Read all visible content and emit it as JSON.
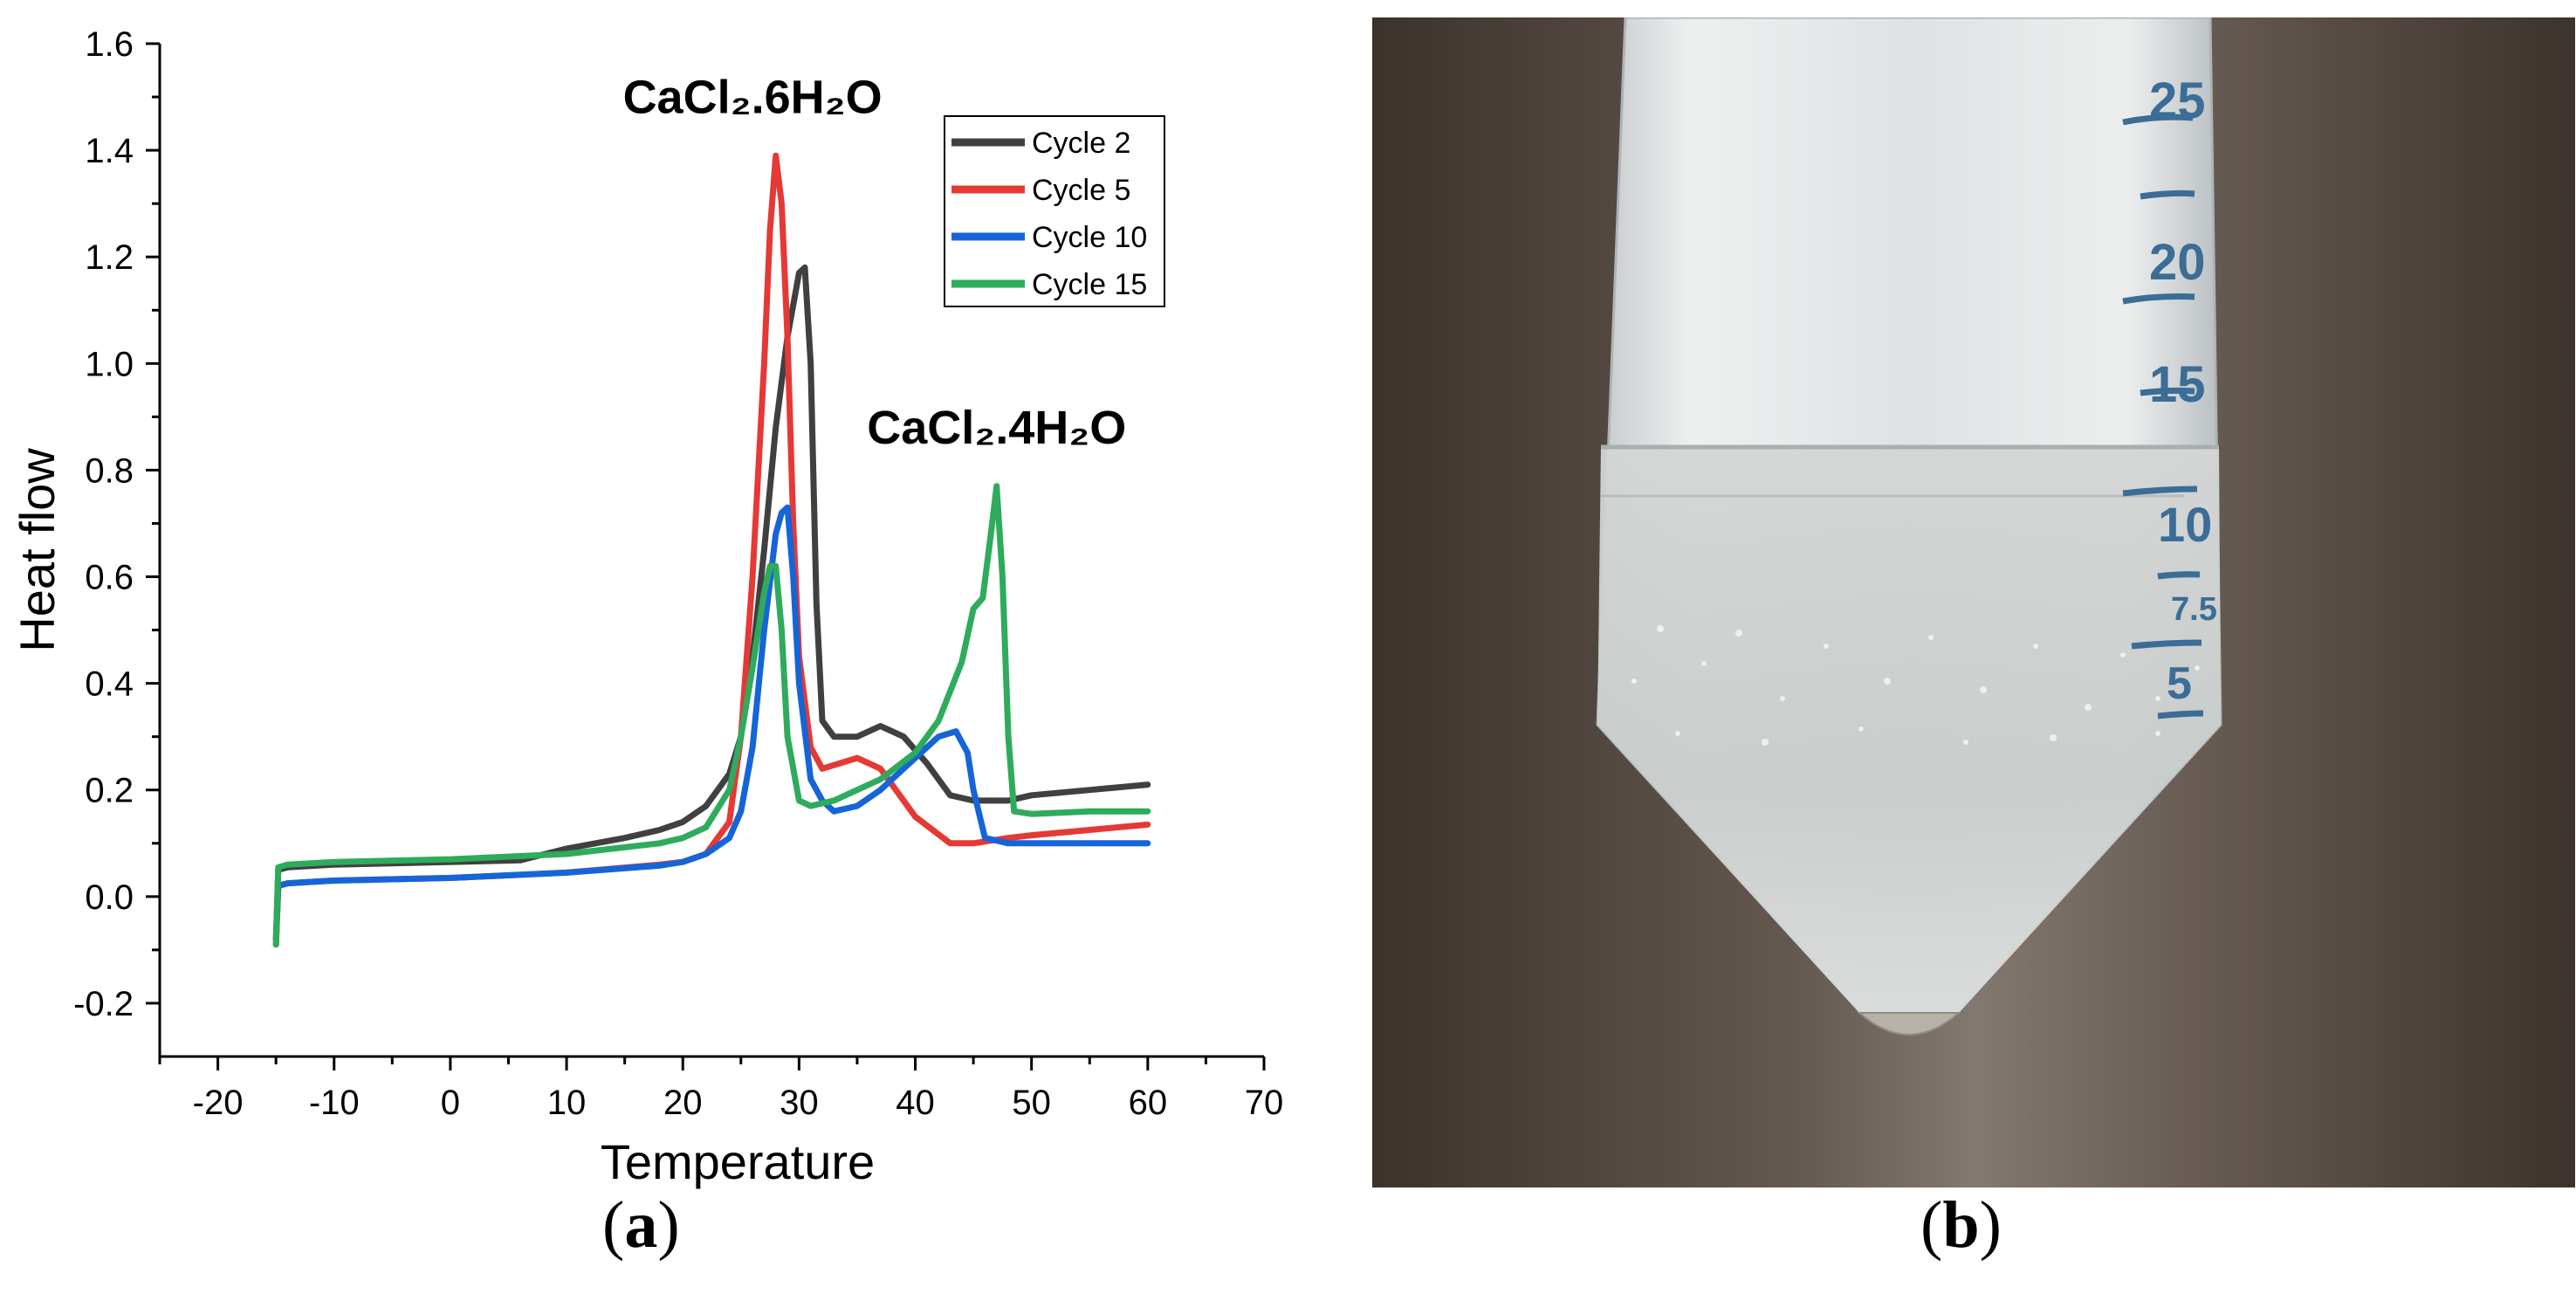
{
  "chart_data": {
    "type": "line",
    "title": "",
    "xlabel": "Temperature",
    "ylabel": "Heat flow",
    "xlim": [
      -25,
      70
    ],
    "ylim": [
      -0.3,
      1.6
    ],
    "x_ticks": [
      -20,
      -10,
      0,
      10,
      20,
      30,
      40,
      50,
      60,
      70
    ],
    "y_ticks": [
      -0.2,
      0.0,
      0.2,
      0.4,
      0.6,
      0.8,
      1.0,
      1.2,
      1.4,
      1.6
    ],
    "x_tick_labels": [
      "-20",
      "-10",
      "0",
      "10",
      "20",
      "30",
      "40",
      "50",
      "60",
      "70"
    ],
    "y_tick_labels": [
      "-0.2",
      "0.0",
      "0.2",
      "0.4",
      "0.6",
      "0.8",
      "1.0",
      "1.2",
      "1.4",
      "1.6"
    ],
    "legend_position": "top-right",
    "grid": false,
    "annotations": [
      {
        "label": "CaCl₂.6H₂O",
        "x": 26,
        "y": 1.47
      },
      {
        "label": "CaCl₂.4H₂O",
        "x": 47,
        "y": 0.85
      }
    ],
    "series": [
      {
        "name": "Cycle 2",
        "color": "#404040",
        "x": [
          -15,
          -14.8,
          -14,
          -10,
          0,
          6,
          10,
          15,
          18,
          20,
          22,
          24,
          25,
          26,
          27,
          28,
          29,
          30,
          30.5,
          31,
          31.5,
          32,
          33,
          35,
          37,
          39,
          41,
          43,
          45,
          48,
          50,
          55,
          60
        ],
        "y": [
          -0.08,
          0.05,
          0.055,
          0.06,
          0.065,
          0.068,
          0.09,
          0.11,
          0.125,
          0.14,
          0.17,
          0.23,
          0.3,
          0.45,
          0.65,
          0.88,
          1.05,
          1.17,
          1.18,
          1.0,
          0.55,
          0.33,
          0.3,
          0.3,
          0.32,
          0.3,
          0.25,
          0.19,
          0.18,
          0.18,
          0.19,
          0.2,
          0.21
        ]
      },
      {
        "name": "Cycle 5",
        "color": "#e53935",
        "x": [
          -15,
          -14.8,
          -14,
          -10,
          0,
          10,
          18,
          20,
          22,
          24,
          25,
          26,
          27,
          27.5,
          28,
          28.5,
          29,
          29.5,
          30,
          31,
          32,
          35,
          37,
          40,
          43,
          45,
          48,
          50,
          55,
          60
        ],
        "y": [
          -0.09,
          0.02,
          0.025,
          0.03,
          0.035,
          0.045,
          0.06,
          0.065,
          0.08,
          0.14,
          0.3,
          0.6,
          1.0,
          1.25,
          1.39,
          1.3,
          1.05,
          0.7,
          0.45,
          0.28,
          0.24,
          0.26,
          0.24,
          0.15,
          0.1,
          0.1,
          0.11,
          0.115,
          0.125,
          0.135
        ]
      },
      {
        "name": "Cycle 10",
        "color": "#1565d8",
        "x": [
          -15,
          -14.8,
          -14,
          -10,
          0,
          10,
          18,
          20,
          22,
          24,
          25,
          26,
          27,
          28,
          28.5,
          29,
          29.5,
          30,
          31,
          32,
          33,
          35,
          37,
          40,
          42,
          43.5,
          44.5,
          45,
          46,
          48,
          50,
          55,
          60
        ],
        "y": [
          -0.08,
          0.02,
          0.025,
          0.03,
          0.035,
          0.045,
          0.058,
          0.065,
          0.08,
          0.11,
          0.16,
          0.28,
          0.5,
          0.68,
          0.72,
          0.73,
          0.6,
          0.4,
          0.22,
          0.18,
          0.16,
          0.17,
          0.2,
          0.26,
          0.3,
          0.31,
          0.27,
          0.2,
          0.11,
          0.1,
          0.1,
          0.1,
          0.1
        ]
      },
      {
        "name": "Cycle 15",
        "color": "#2eab5c",
        "x": [
          -15,
          -14.8,
          -14,
          -10,
          0,
          10,
          18,
          20,
          22,
          24,
          25,
          26,
          27,
          27.5,
          28,
          28.5,
          29,
          30,
          31,
          33,
          35,
          37,
          40,
          42,
          44,
          45,
          45.8,
          46.5,
          47,
          47.5,
          48,
          48.5,
          50,
          55,
          60
        ],
        "y": [
          -0.09,
          0.055,
          0.06,
          0.065,
          0.07,
          0.08,
          0.1,
          0.11,
          0.13,
          0.2,
          0.3,
          0.43,
          0.57,
          0.62,
          0.62,
          0.5,
          0.3,
          0.18,
          0.17,
          0.18,
          0.2,
          0.22,
          0.27,
          0.33,
          0.44,
          0.54,
          0.56,
          0.68,
          0.77,
          0.6,
          0.3,
          0.16,
          0.155,
          0.16,
          0.16
        ]
      }
    ]
  },
  "figure": {
    "panel_a_label": "(a)",
    "panel_b_label": "(b)",
    "panel_a_label_letter": "a",
    "panel_b_label_letter": "b"
  },
  "photo": {
    "tube_graduations": [
      "25",
      "20",
      "15",
      "10",
      "7.5",
      "5"
    ],
    "colors": {
      "background_dark": "#4a4038",
      "background_light": "#8a7e74",
      "tube_body": "#d8dbdc",
      "liquid": "#c9cdcc",
      "scale_blue": "#3b6d96"
    }
  }
}
